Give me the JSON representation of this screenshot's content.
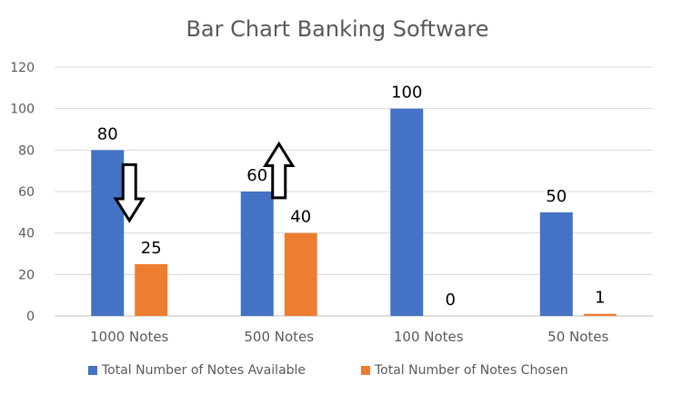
{
  "chart_data": {
    "type": "bar",
    "title": "Bar Chart Banking Software",
    "categories": [
      "1000 Notes",
      "500 Notes",
      "100 Notes",
      "50 Notes"
    ],
    "series": [
      {
        "name": "Total Number of Notes Available",
        "values": [
          80,
          60,
          100,
          50
        ],
        "color": "#4472C4"
      },
      {
        "name": "Total Number of Notes Chosen",
        "values": [
          25,
          40,
          0,
          1
        ],
        "color": "#ED7D31"
      }
    ],
    "yticks": [
      "0",
      "20",
      "40",
      "60",
      "80",
      "100",
      "120"
    ],
    "ylim": [
      0,
      120
    ],
    "grid": true,
    "legend_position": "bottom",
    "annotations": [
      {
        "shape": "arrow-down",
        "category": "1000 Notes",
        "from": 73,
        "to": 46
      },
      {
        "shape": "arrow-up",
        "category": "500 Notes",
        "from": 57,
        "to": 83
      }
    ]
  }
}
